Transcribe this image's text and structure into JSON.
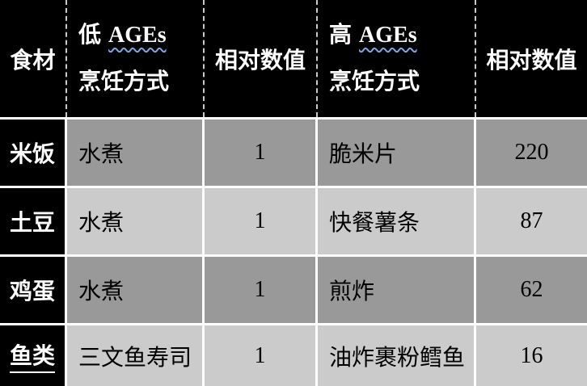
{
  "table": {
    "header": {
      "food": "食材",
      "low_prefix": "低",
      "low_ages": "AGEs",
      "low_method": "烹饪方式",
      "low_value": "相对数值",
      "high_prefix": "高",
      "high_ages": "AGEs",
      "high_method": "烹饪方式",
      "high_value": "相对数值"
    },
    "rows": [
      {
        "food": "米饭",
        "low_method": "水煮",
        "low_value": "1",
        "high_method": "脆米片",
        "high_value": "220"
      },
      {
        "food": "土豆",
        "low_method": "水煮",
        "low_value": "1",
        "high_method": "快餐薯条",
        "high_value": "87"
      },
      {
        "food": "鸡蛋",
        "low_method": "水煮",
        "low_value": "1",
        "high_method": "煎炸",
        "high_value": "62"
      },
      {
        "food": "鱼类",
        "low_method": "三文鱼寿司",
        "low_value": "1",
        "high_method": "油炸裹粉鳕鱼",
        "high_value": "16"
      }
    ],
    "colors": {
      "header_bg": "#000000",
      "header_text": "#ffffff",
      "row_dark": "#999999",
      "row_light": "#cbcbcb",
      "grid_line": "#ffffff",
      "spellcheck_squiggle": "#7da7e8"
    }
  }
}
